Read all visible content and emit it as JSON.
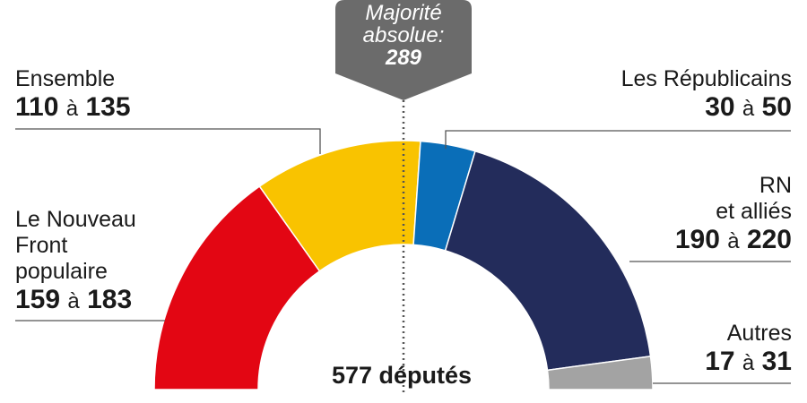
{
  "chart_data": {
    "type": "pie",
    "subtype": "hemicycle",
    "total_label": "577 députés",
    "total_seats": 577,
    "majority": {
      "label": "Majorité absolue:",
      "value": "289",
      "color": "#6b6b6b"
    },
    "connector": "à",
    "series": [
      {
        "name": "Le Nouveau Front populaire",
        "name_lines": [
          "Le Nouveau",
          "Front",
          "populaire"
        ],
        "min": 159,
        "max": 183,
        "color": "#e30613"
      },
      {
        "name": "Ensemble",
        "name_lines": [
          "Ensemble"
        ],
        "min": 110,
        "max": 135,
        "color": "#f9c300"
      },
      {
        "name": "Les Républicains",
        "name_lines": [
          "Les Républicains"
        ],
        "min": 30,
        "max": 50,
        "color": "#0a6eb8"
      },
      {
        "name": "RN et alliés",
        "name_lines": [
          "RN",
          "et alliés"
        ],
        "min": 190,
        "max": 220,
        "color": "#232c5b"
      },
      {
        "name": "Autres",
        "name_lines": [
          "Autres"
        ],
        "min": 17,
        "max": 31,
        "color": "#a3a3a3"
      }
    ]
  }
}
